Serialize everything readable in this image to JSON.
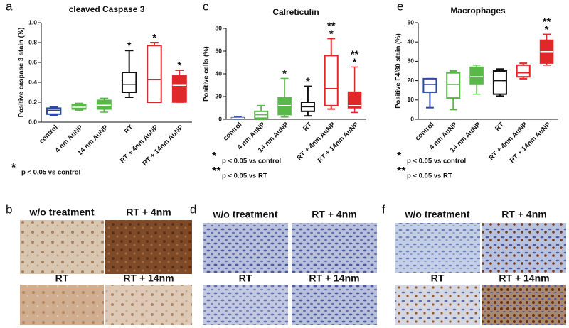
{
  "chart_data": [
    {
      "type": "box",
      "panel": "a",
      "title": "cleaved Caspase 3",
      "y_label": "Positive caspase 3 stain (%)",
      "categories": [
        "control",
        "4 nm AuNP",
        "14 nm AuNP",
        "RT",
        "RT + 4nm AuNP",
        "RT + 14nm AuNP"
      ],
      "boxes": [
        {
          "min": 0.07,
          "q1": 0.08,
          "median": 0.12,
          "q3": 0.14,
          "max": 0.15
        },
        {
          "min": 0.12,
          "q1": 0.13,
          "median": 0.15,
          "q3": 0.18,
          "max": 0.19
        },
        {
          "min": 0.1,
          "q1": 0.13,
          "median": 0.17,
          "q3": 0.22,
          "max": 0.24
        },
        {
          "min": 0.25,
          "q1": 0.3,
          "median": 0.38,
          "q3": 0.5,
          "max": 0.72
        },
        {
          "min": 0.2,
          "q1": 0.2,
          "median": 0.43,
          "q3": 0.77,
          "max": 0.8
        },
        {
          "min": 0.2,
          "q1": 0.2,
          "median": 0.37,
          "q3": 0.47,
          "max": 0.52
        }
      ],
      "colors": [
        "#2b4aa8",
        "#58b848",
        "#58b848",
        "#111111",
        "#e0282a",
        "#e0282a"
      ],
      "filled": [
        false,
        true,
        true,
        false,
        false,
        true
      ],
      "annotations": [
        null,
        null,
        null,
        [
          "*"
        ],
        [
          "*"
        ],
        [
          "*"
        ]
      ],
      "ylim": [
        0,
        1.0
      ],
      "yticks": [
        {
          "value": 0,
          "label": "0.0"
        },
        {
          "value": 0.2,
          "label": "0.2"
        },
        {
          "value": 0.4,
          "label": "0.4"
        },
        {
          "value": 0.6,
          "label": "0.6"
        },
        {
          "value": 0.8,
          "label": "0.8"
        },
        {
          "value": 1.0,
          "label": "1.0"
        }
      ],
      "footnotes": [
        {
          "symbol": "*",
          "text": "p < 0.05 vs control"
        }
      ]
    },
    {
      "type": "box",
      "panel": "c",
      "title": "Calreticulin",
      "y_label": "Positive cells (%)",
      "categories": [
        "control",
        "4 nm AuNP",
        "14 nm AuNP",
        "RT",
        "RT + 4nm AuNP",
        "RT + 14nm AuNP"
      ],
      "boxes": [
        {
          "min": 0,
          "q1": 0.5,
          "median": 1,
          "q3": 1.5,
          "max": 2
        },
        {
          "min": 0,
          "q1": 1,
          "median": 4,
          "q3": 7,
          "max": 12
        },
        {
          "min": 2,
          "q1": 4,
          "median": 12,
          "q3": 19,
          "max": 36
        },
        {
          "min": 3,
          "q1": 7,
          "median": 11,
          "q3": 15,
          "max": 29
        },
        {
          "min": 9,
          "q1": 12,
          "median": 27,
          "q3": 56,
          "max": 71
        },
        {
          "min": 6,
          "q1": 10,
          "median": 12,
          "q3": 24,
          "max": 46
        }
      ],
      "colors": [
        "#2b4aa8",
        "#58b848",
        "#58b848",
        "#111111",
        "#e0282a",
        "#e0282a"
      ],
      "filled": [
        true,
        false,
        true,
        false,
        false,
        true
      ],
      "annotations": [
        null,
        null,
        [
          "*"
        ],
        [
          "*"
        ],
        [
          "**",
          "*"
        ],
        [
          "**",
          "*"
        ]
      ],
      "ylim": [
        0,
        80
      ],
      "yticks": [
        0,
        20,
        40,
        60,
        80
      ],
      "footnotes": [
        {
          "symbol": "*",
          "text": "p < 0.05 vs control"
        },
        {
          "symbol": "**",
          "text": "p < 0.05 vs RT"
        }
      ]
    },
    {
      "type": "box",
      "panel": "e",
      "title": "Macrophages",
      "y_label": "Positive F4/80 stain (%)",
      "categories": [
        "control",
        "4 nm AuNP",
        "14 nm AuNP",
        "RT",
        "RT + 4nm AuNP",
        "RT + 14nm AuNP"
      ],
      "boxes": [
        {
          "min": 6,
          "q1": 14,
          "median": 18,
          "q3": 21,
          "max": 21
        },
        {
          "min": 5,
          "q1": 11,
          "median": 18,
          "q3": 24,
          "max": 25
        },
        {
          "min": 13,
          "q1": 18,
          "median": 22,
          "q3": 27,
          "max": 28
        },
        {
          "min": 12,
          "q1": 13,
          "median": 20,
          "q3": 25,
          "max": 26
        },
        {
          "min": 21,
          "q1": 22,
          "median": 24,
          "q3": 28,
          "max": 29
        },
        {
          "min": 28,
          "q1": 29,
          "median": 35,
          "q3": 41,
          "max": 44
        }
      ],
      "colors": [
        "#2b4aa8",
        "#58b848",
        "#58b848",
        "#111111",
        "#e0282a",
        "#e0282a"
      ],
      "filled": [
        false,
        false,
        true,
        false,
        false,
        true
      ],
      "annotations": [
        null,
        null,
        null,
        null,
        null,
        [
          "**",
          "*"
        ]
      ],
      "ylim": [
        0,
        50
      ],
      "yticks": [
        0,
        10,
        20,
        30,
        40,
        50
      ],
      "footnotes": [
        {
          "symbol": "*",
          "text": "p < 0.05 vs control"
        },
        {
          "symbol": "**",
          "text": "p < 0.05 vs RT"
        }
      ]
    }
  ],
  "panels": [
    {
      "letter": "b",
      "labels": [
        "w/o treatment",
        "RT + 4nm",
        "RT",
        "RT + 14nm"
      ]
    },
    {
      "letter": "d",
      "labels": [
        "w/o treatment",
        "RT + 4nm",
        "RT",
        "RT + 14nm"
      ]
    },
    {
      "letter": "f",
      "labels": [
        "w/o treatment",
        "RT + 4nm",
        "RT",
        "RT + 14nm"
      ]
    }
  ]
}
